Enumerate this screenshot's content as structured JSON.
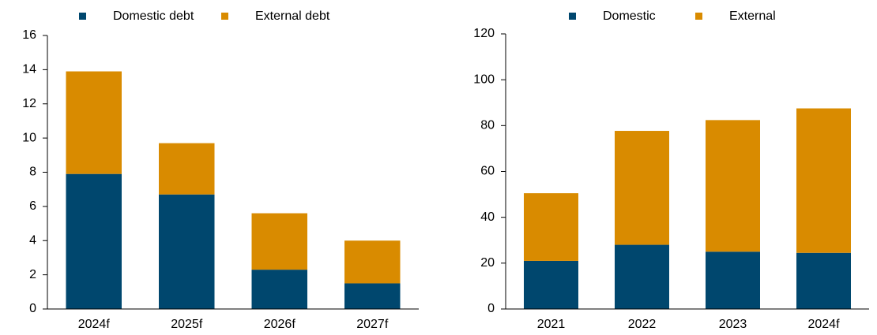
{
  "chart_data": [
    {
      "type": "bar",
      "stacked": true,
      "categories": [
        "2024f",
        "2025f",
        "2026f",
        "2027f"
      ],
      "series": [
        {
          "name": "Domestic debt",
          "color": "#00476e",
          "values": [
            7.9,
            6.7,
            2.3,
            1.5
          ]
        },
        {
          "name": "External debt",
          "color": "#d98b00",
          "values": [
            6.0,
            3.0,
            3.3,
            2.5
          ]
        }
      ],
      "ylim": [
        0,
        16
      ],
      "yticks": [
        0,
        2,
        4,
        6,
        8,
        10,
        12,
        14,
        16
      ],
      "legend": "top"
    },
    {
      "type": "bar",
      "stacked": true,
      "categories": [
        "2021",
        "2022",
        "2023",
        "2024f"
      ],
      "series": [
        {
          "name": "Domestic",
          "color": "#00476e",
          "values": [
            21,
            28,
            25,
            24.5
          ]
        },
        {
          "name": "External",
          "color": "#d98b00",
          "values": [
            29.5,
            49.7,
            57.4,
            63
          ]
        }
      ],
      "ylim": [
        0,
        120
      ],
      "yticks": [
        0,
        20,
        40,
        60,
        80,
        100,
        120
      ],
      "legend": "top"
    }
  ]
}
